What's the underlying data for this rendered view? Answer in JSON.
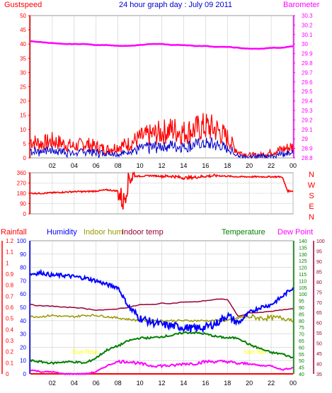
{
  "title": "24 hour graph day : July 09 2011",
  "x_tick_labels": [
    "02",
    "04",
    "06",
    "08",
    "10",
    "12",
    "14",
    "16",
    "18",
    "20",
    "22",
    "00"
  ],
  "colors": {
    "gust": "#ff0000",
    "wind": "#0000cc",
    "barometer": "#ff00ff",
    "direction": "#ff0000",
    "rain": "#ff0000",
    "humidity": "#0000ff",
    "indoor_hum": "#999900",
    "indoor_temp": "#990033",
    "temperature": "#008000",
    "dew_point": "#ff00ff",
    "axis_red": "#ff0000",
    "axis_blue": "#0000ff",
    "axis_green": "#008000",
    "axis_maroon": "#990033",
    "grid": "#cccccc"
  },
  "panel1": {
    "left_label": "Gustspeed",
    "right_label": "Barometer",
    "left_ticks": [
      "0",
      "5",
      "10",
      "15",
      "20",
      "25",
      "30",
      "35",
      "40",
      "45",
      "50"
    ],
    "right_ticks": [
      "28.8",
      "28.9",
      "29",
      "29.1",
      "29.2",
      "29.3",
      "29.4",
      "29.5",
      "29.6",
      "29.7",
      "29.8",
      "29.9",
      "30",
      "30.1",
      "30.2",
      "30.3"
    ]
  },
  "panel2": {
    "left_ticks": [
      "0",
      "90",
      "180",
      "270",
      "360"
    ],
    "compass_labels": [
      "N",
      "W",
      "S",
      "E",
      "N"
    ]
  },
  "panel3": {
    "labels": {
      "rainfall": "Rainfall",
      "humidity": "Humidity",
      "indoor_hum": "Indoor hum",
      "indoor_temp": "Indoor temp",
      "temperature": "Temperature",
      "dew_point": "Dew Point"
    },
    "rain_ticks": [
      "0",
      "0.1",
      "0.2",
      "0.3",
      "0.4",
      "0.5",
      "0.6",
      "0.7",
      "0.8",
      "0.9",
      "1",
      "1.1",
      "1.2"
    ],
    "hum_ticks": [
      "0",
      "10",
      "20",
      "30",
      "40",
      "50",
      "60",
      "70",
      "80",
      "90",
      "100"
    ],
    "temp_ticks": [
      "40",
      "45",
      "50",
      "55",
      "60",
      "65",
      "70",
      "75",
      "80",
      "85",
      "90",
      "95",
      "100",
      "105",
      "110",
      "115",
      "120",
      "125",
      "130",
      "135",
      "140"
    ],
    "dew_ticks": [
      "35",
      "40",
      "45",
      "50",
      "55",
      "60",
      "65",
      "70",
      "75",
      "80",
      "85",
      "90",
      "95",
      "100"
    ],
    "sunrise_label": "Sun Rise",
    "sunset_label": "Sun Set"
  },
  "chart_data": [
    {
      "type": "line",
      "title": "24 hour graph day : July 09 2011",
      "x": [
        0,
        1,
        2,
        3,
        4,
        5,
        6,
        7,
        8,
        9,
        10,
        11,
        12,
        13,
        14,
        15,
        16,
        17,
        18,
        19,
        20,
        21,
        22,
        23,
        24
      ],
      "series": [
        {
          "name": "Gustspeed",
          "axis": "left",
          "values": [
            6,
            5,
            6,
            5,
            4,
            5,
            4,
            3,
            4,
            5,
            7,
            8,
            9,
            10,
            9,
            10,
            11,
            10,
            7,
            2,
            1,
            1,
            2,
            3,
            4
          ]
        },
        {
          "name": "Barometer",
          "axis": "right",
          "values": [
            30.03,
            30.02,
            30.01,
            30.0,
            30.0,
            30.0,
            29.99,
            29.99,
            29.98,
            29.98,
            29.99,
            30.0,
            30.0,
            29.99,
            29.99,
            29.98,
            29.98,
            29.97,
            29.97,
            29.96,
            29.95,
            29.95,
            29.96,
            29.96,
            29.98
          ]
        }
      ],
      "ylim": [
        0,
        50
      ],
      "y2lim": [
        28.8,
        30.3
      ]
    },
    {
      "type": "line",
      "x": [
        0,
        1,
        2,
        3,
        4,
        5,
        6,
        7,
        8,
        8.5,
        9,
        10,
        11,
        12,
        13,
        14,
        15,
        16,
        17,
        18,
        19,
        20,
        21,
        22,
        23,
        23.5,
        24
      ],
      "series": [
        {
          "name": "Wind direction",
          "values": [
            180,
            180,
            185,
            190,
            195,
            195,
            200,
            210,
            200,
            100,
            330,
            330,
            335,
            330,
            330,
            315,
            320,
            330,
            335,
            330,
            325,
            325,
            325,
            325,
            325,
            200,
            200
          ]
        }
      ],
      "ylim": [
        0,
        360
      ]
    },
    {
      "type": "line",
      "x": [
        0,
        1,
        2,
        3,
        4,
        5,
        6,
        7,
        8,
        9,
        10,
        11,
        12,
        13,
        14,
        15,
        16,
        17,
        18,
        19,
        20,
        21,
        22,
        23,
        24
      ],
      "series": [
        {
          "name": "Humidity",
          "axis": "humidity",
          "values": [
            75,
            76,
            74,
            74,
            73,
            72,
            70,
            67,
            65,
            50,
            42,
            39,
            37,
            36,
            35,
            34,
            35,
            38,
            44,
            38,
            46,
            50,
            52,
            58,
            65
          ]
        },
        {
          "name": "Indoor hum",
          "axis": "humidity",
          "values": [
            43,
            43,
            44,
            43,
            43,
            44,
            44,
            43,
            42,
            41,
            40,
            40,
            40,
            40,
            40,
            40,
            40,
            40,
            40,
            42,
            43,
            42,
            42,
            42,
            41
          ]
        },
        {
          "name": "Indoor temp",
          "axis": "temperature",
          "values": [
            92,
            91,
            91,
            90,
            90,
            89,
            88,
            88,
            89,
            90,
            92,
            92,
            93,
            93,
            94,
            94,
            95,
            96,
            96,
            83,
            86,
            86,
            87,
            88,
            89
          ]
        },
        {
          "name": "Temperature",
          "axis": "temperature",
          "values": [
            50,
            49,
            48,
            49,
            49,
            48,
            52,
            58,
            61,
            65,
            67,
            67,
            68,
            69,
            71,
            71,
            70,
            68,
            67,
            67,
            62,
            59,
            56,
            55,
            52
          ]
        },
        {
          "name": "Dew Point",
          "axis": "dew",
          "values": [
            37,
            36,
            36,
            35,
            35,
            35,
            36,
            39,
            41,
            41,
            40,
            39,
            39,
            39,
            40,
            40,
            41,
            41,
            41,
            40,
            40,
            39,
            39,
            37,
            38
          ]
        },
        {
          "name": "Rainfall",
          "axis": "rain",
          "values": [
            0,
            0,
            0,
            0,
            0,
            0,
            0,
            0,
            0,
            0,
            0,
            0,
            0,
            0,
            0,
            0,
            0,
            0,
            0,
            0,
            0,
            0,
            0,
            0,
            0
          ]
        }
      ],
      "rain_lim": [
        0,
        1.2
      ],
      "humidity_lim": [
        0,
        100
      ],
      "temperature_lim": [
        40,
        140
      ],
      "dew_lim": [
        35,
        100
      ]
    }
  ]
}
